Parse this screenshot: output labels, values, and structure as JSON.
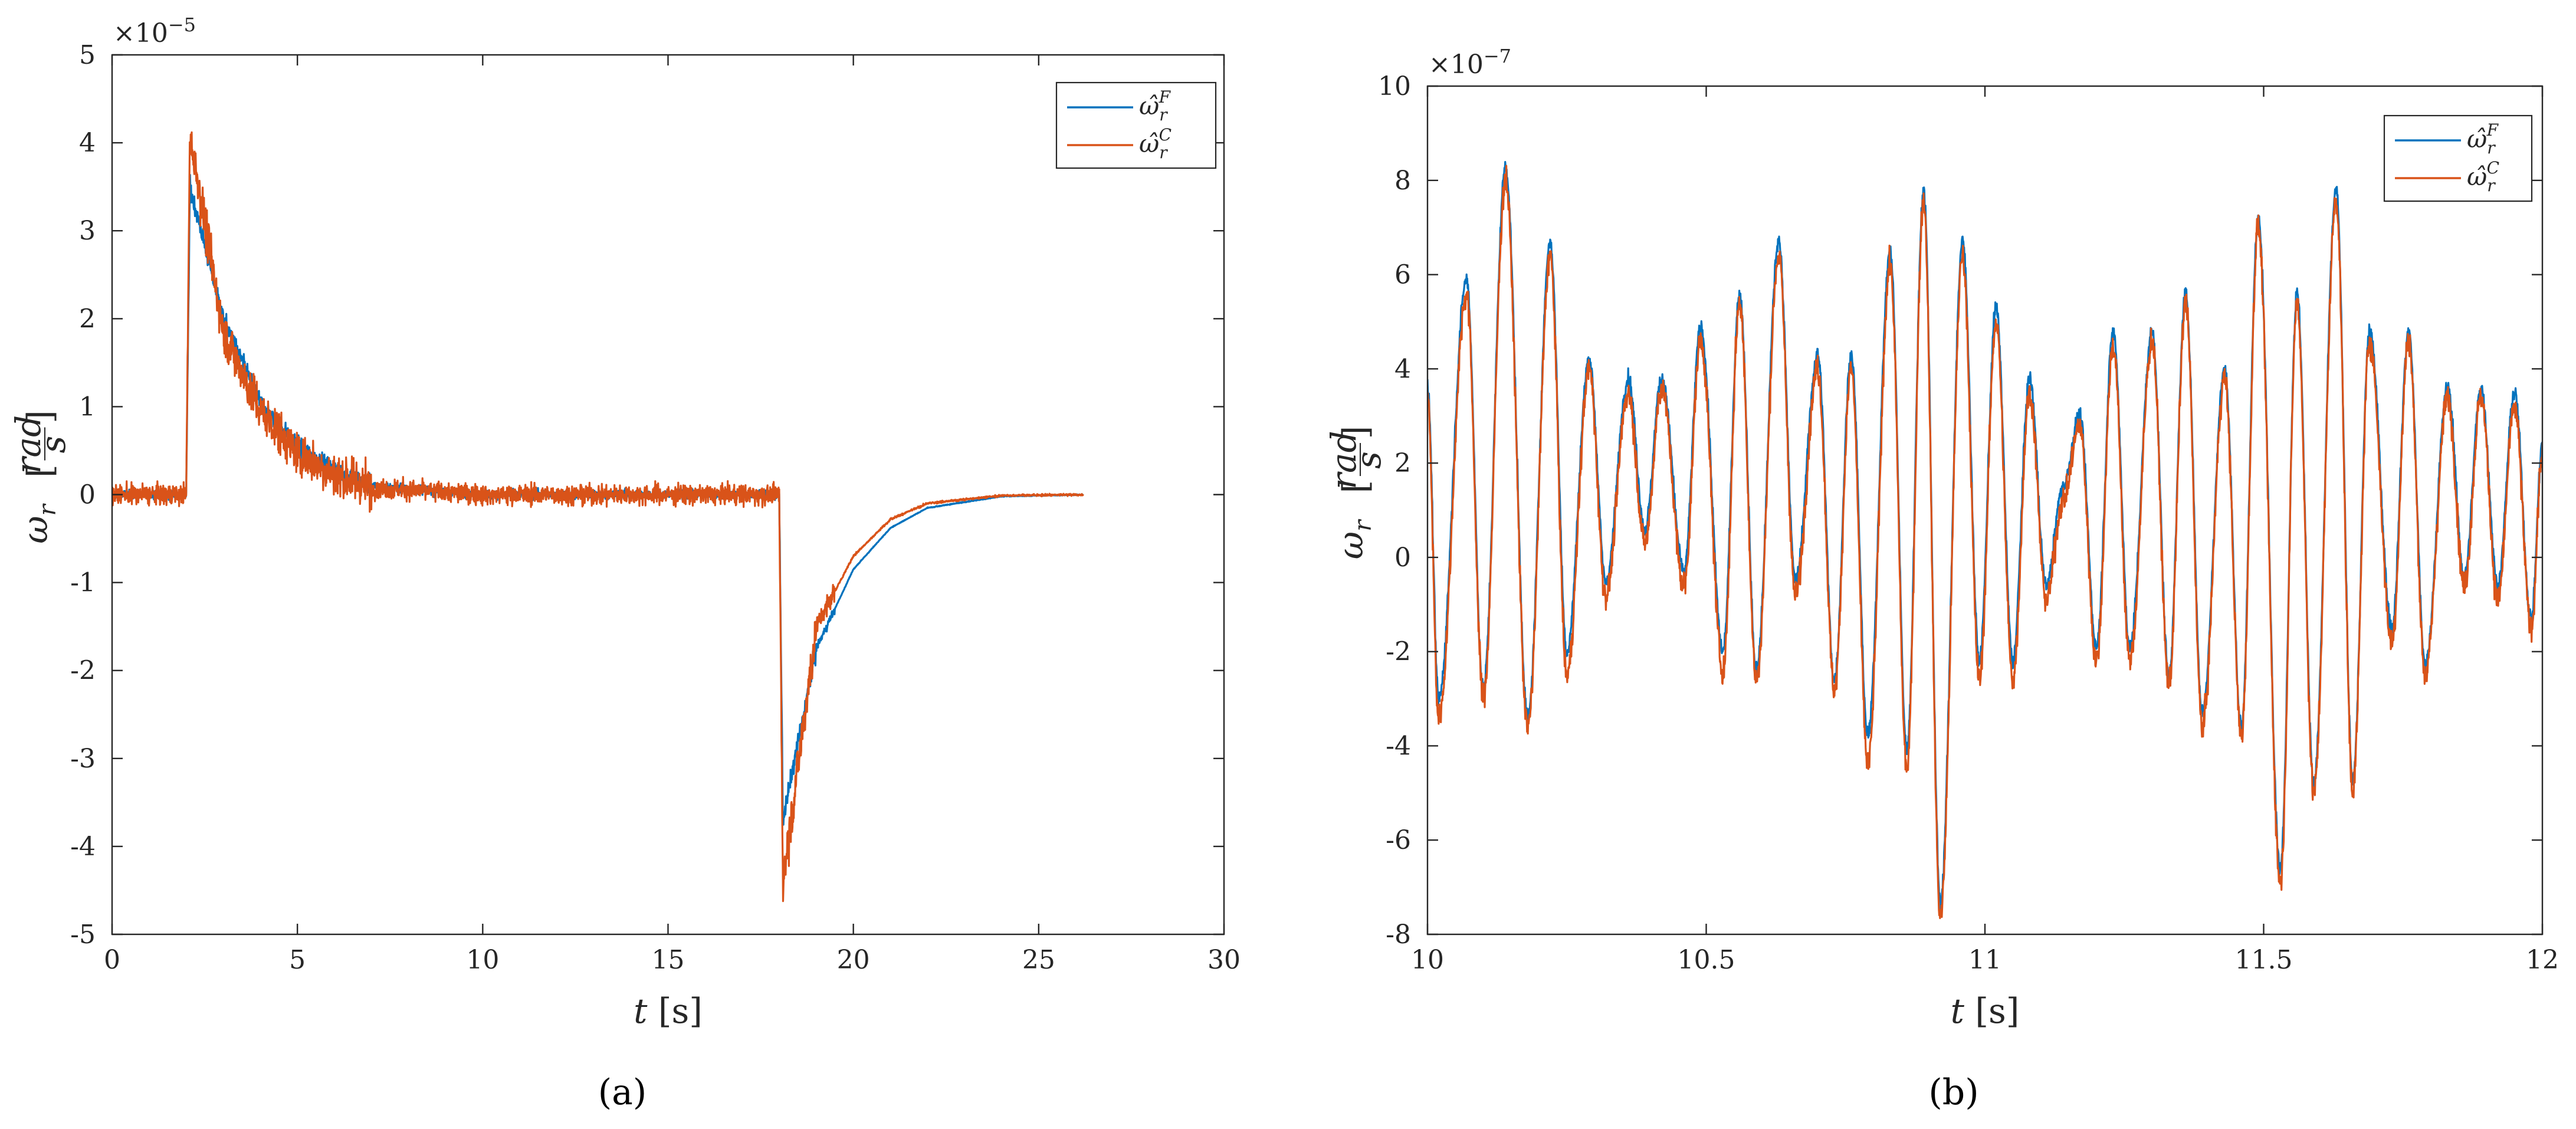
{
  "chart_data": [
    {
      "id": "a",
      "type": "line",
      "panel_label": "(a)",
      "x_label_var": "t",
      "x_label_unit": "[s]",
      "y_label_var": "ω",
      "y_label_sub": "r",
      "y_label_num": "rad",
      "y_label_den": "s",
      "xlim": [
        0,
        30
      ],
      "ylim": [
        -5e-05,
        5e-05
      ],
      "x_ticks": [
        0,
        5,
        10,
        15,
        20,
        25,
        30
      ],
      "x_tick_labels": [
        "0",
        "5",
        "10",
        "15",
        "20",
        "25",
        "30"
      ],
      "y_ticks": [
        -5,
        -4,
        -3,
        -2,
        -1,
        0,
        1,
        2,
        3,
        4,
        5
      ],
      "y_tick_labels": [
        "-5",
        "-4",
        "-3",
        "-2",
        "-1",
        "0",
        "1",
        "2",
        "3",
        "4",
        "5"
      ],
      "y_exponent_base": "×10",
      "y_exponent_power": "−5",
      "legend_position": "top-right",
      "grid": false,
      "series": [
        {
          "name": "ω̂",
          "sup": "F",
          "sub": "r",
          "color": "#0072BD",
          "description": "step-like rise to ~3.5e-5 at t≈2 s with exponential decay to 0 by ~7 s; negative drop to ~-3.7e-5 at t≈18 s recovering to 0 by ~25 s",
          "x": [
            0,
            2,
            2.1,
            3,
            4,
            5,
            6,
            7,
            10,
            15,
            18,
            18.1,
            19,
            20,
            21,
            22,
            24,
            26.2
          ],
          "y": [
            0,
            0,
            3.5e-05,
            2e-05,
            1.05e-05,
            5.5e-06,
            2.8e-06,
            1e-06,
            0,
            0,
            0,
            -3.7e-05,
            -1.75e-05,
            -8.5e-06,
            -3.8e-06,
            -1.5e-06,
            -2e-07,
            0
          ]
        },
        {
          "name": "ω̂",
          "sup": "C",
          "sub": "r",
          "color": "#D95319",
          "description": "tracks the blue curve with noise; spikes to ~4.1e-5 at t≈2 s and to ~-4.4e-5 at t≈18 s, recovers slightly faster",
          "x": [
            0,
            2,
            2.1,
            3,
            4,
            5,
            6,
            7,
            10,
            15,
            18,
            18.1,
            19,
            20,
            21,
            22,
            24,
            26.2
          ],
          "y": [
            0,
            0,
            4.1e-05,
            1.85e-05,
            9.5e-06,
            4.7e-06,
            2.3e-06,
            8e-07,
            0,
            0,
            0,
            -4.4e-05,
            -1.5e-05,
            -7e-06,
            -2.8e-06,
            -1e-06,
            -1e-07,
            0
          ]
        }
      ]
    },
    {
      "id": "b",
      "type": "line",
      "panel_label": "(b)",
      "x_label_var": "t",
      "x_label_unit": "[s]",
      "y_label_var": "ω",
      "y_label_sub": "r",
      "y_label_num": "rad",
      "y_label_den": "s",
      "xlim": [
        10,
        12
      ],
      "ylim": [
        -8e-07,
        1e-06
      ],
      "x_ticks": [
        10,
        10.5,
        11,
        11.5,
        12
      ],
      "x_tick_labels": [
        "10",
        "10.5",
        "11",
        "11.5",
        "12"
      ],
      "y_ticks": [
        -8,
        -6,
        -4,
        -2,
        0,
        2,
        4,
        6,
        8,
        10
      ],
      "y_tick_labels": [
        "-8",
        "-6",
        "-4",
        "-2",
        "0",
        "2",
        "4",
        "6",
        "8",
        "10"
      ],
      "y_exponent_base": "×10",
      "y_exponent_power": "−7",
      "legend_position": "top-right",
      "grid": false,
      "series": [
        {
          "name": "ω̂",
          "sup": "F",
          "sub": "r",
          "color": "#0072BD",
          "x": [
            10.0,
            10.02,
            10.07,
            10.1,
            10.14,
            10.18,
            10.22,
            10.25,
            10.29,
            10.32,
            10.36,
            10.39,
            10.42,
            10.46,
            10.49,
            10.53,
            10.56,
            10.59,
            10.63,
            10.66,
            10.7,
            10.73,
            10.76,
            10.79,
            10.83,
            10.86,
            10.89,
            10.92,
            10.96,
            10.99,
            11.02,
            11.05,
            11.08,
            11.11,
            11.14,
            11.17,
            11.2,
            11.23,
            11.26,
            11.3,
            11.33,
            11.36,
            11.39,
            11.43,
            11.46,
            11.49,
            11.53,
            11.56,
            11.59,
            11.63,
            11.66,
            11.69,
            11.73,
            11.76,
            11.79,
            11.83,
            11.86,
            11.89,
            11.92,
            11.95,
            11.98,
            12.0
          ],
          "y": [
            3.6e-07,
            -3e-07,
            5.9e-07,
            -2.8e-07,
            8.3e-07,
            -3.4e-07,
            6.7e-07,
            -2e-07,
            4.2e-07,
            -5e-08,
            3.8e-07,
            6e-08,
            3.8e-07,
            -3e-08,
            4.9e-07,
            -2e-07,
            5.6e-07,
            -2.4e-07,
            6.7e-07,
            -5e-08,
            4.3e-07,
            -2.6e-07,
            4.3e-07,
            -3.8e-07,
            6.5e-07,
            -4.1e-07,
            7.8e-07,
            -7.3e-07,
            6.7e-07,
            -2.2e-07,
            5.3e-07,
            -2.2e-07,
            3.8e-07,
            -6e-08,
            1.5e-07,
            3e-07,
            -1.9e-07,
            4.8e-07,
            -1.9e-07,
            4.8e-07,
            -2.5e-07,
            5.6e-07,
            -3.3e-07,
            4e-07,
            -3.6e-07,
            7.2e-07,
            -6.6e-07,
            5.6e-07,
            -4.8e-07,
            7.8e-07,
            -4.7e-07,
            4.8e-07,
            -1.5e-07,
            4.8e-07,
            -2.3e-07,
            3.6e-07,
            -4e-08,
            3.6e-07,
            -6e-08,
            3.5e-07,
            -1.3e-07,
            2.4e-07
          ]
        },
        {
          "name": "ω̂",
          "sup": "C",
          "sub": "r",
          "color": "#D95319",
          "x": [
            10.0,
            10.02,
            10.07,
            10.1,
            10.14,
            10.18,
            10.22,
            10.25,
            10.29,
            10.32,
            10.36,
            10.39,
            10.42,
            10.46,
            10.49,
            10.53,
            10.56,
            10.59,
            10.63,
            10.66,
            10.7,
            10.73,
            10.76,
            10.79,
            10.83,
            10.86,
            10.89,
            10.92,
            10.96,
            10.99,
            11.02,
            11.05,
            11.08,
            11.11,
            11.14,
            11.17,
            11.2,
            11.23,
            11.26,
            11.3,
            11.33,
            11.36,
            11.39,
            11.43,
            11.46,
            11.49,
            11.53,
            11.56,
            11.59,
            11.63,
            11.66,
            11.69,
            11.73,
            11.76,
            11.79,
            11.83,
            11.86,
            11.89,
            11.92,
            11.95,
            11.98,
            12.0
          ],
          "y": [
            3.4e-07,
            -3.4e-07,
            5.6e-07,
            -3e-07,
            8e-07,
            -3.6e-07,
            6.4e-07,
            -2.5e-07,
            4e-07,
            -8e-08,
            3.5e-07,
            3e-08,
            3.6e-07,
            -6e-08,
            4.6e-07,
            -2.4e-07,
            5.4e-07,
            -2.6e-07,
            6.4e-07,
            -8e-08,
            4e-07,
            -2.8e-07,
            4e-07,
            -4.4e-07,
            6.2e-07,
            -4.5e-07,
            7.6e-07,
            -7.6e-07,
            6.4e-07,
            -2.6e-07,
            5e-07,
            -2.6e-07,
            3.5e-07,
            -9e-08,
            1.2e-07,
            2.8e-07,
            -2.2e-07,
            4.5e-07,
            -2.2e-07,
            4.6e-07,
            -2.7e-07,
            5.4e-07,
            -3.6e-07,
            3.8e-07,
            -3.8e-07,
            7e-07,
            -6.9e-07,
            5.4e-07,
            -5e-07,
            7.6e-07,
            -4.9e-07,
            4.6e-07,
            -1.8e-07,
            4.6e-07,
            -2.5e-07,
            3.4e-07,
            -6e-08,
            3.4e-07,
            -9e-08,
            3.2e-07,
            -1.5e-07,
            2.2e-07
          ]
        }
      ]
    }
  ]
}
